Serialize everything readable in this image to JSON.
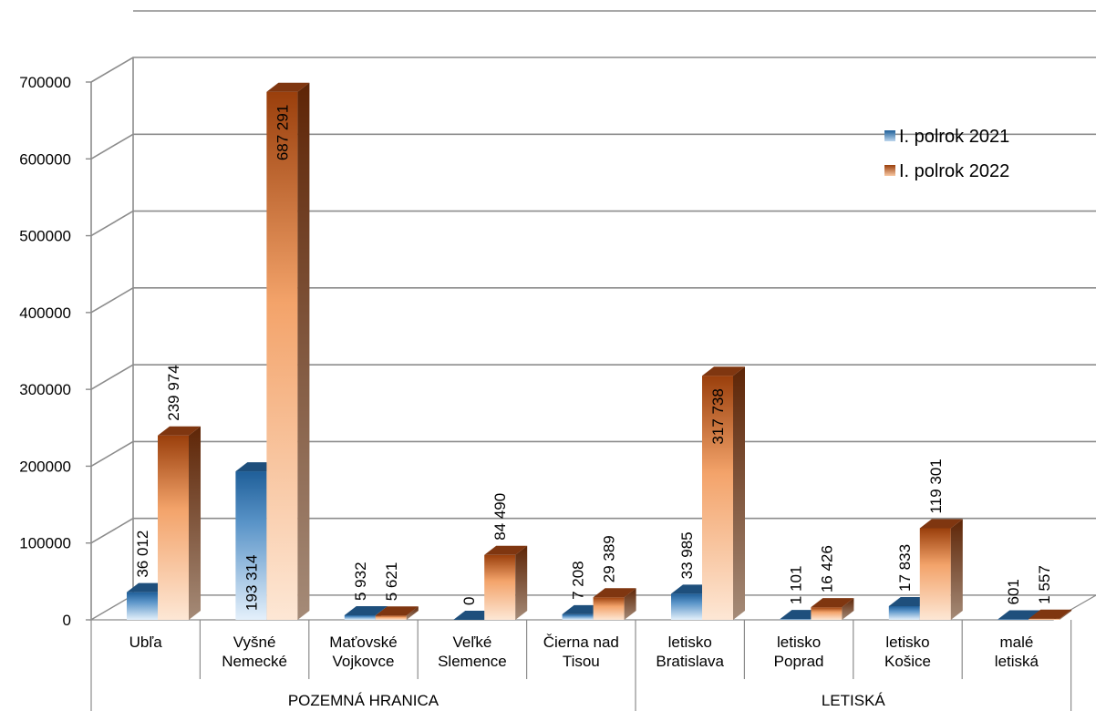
{
  "chart_data": {
    "type": "bar",
    "title": "",
    "xlabel": "",
    "ylabel": "",
    "ylim": [
      0,
      700000
    ],
    "yticks": [
      "0",
      "100000",
      "200000",
      "300000",
      "400000",
      "500000",
      "600000",
      "700000"
    ],
    "grid": true,
    "legend_position": "top-right",
    "categories": [
      "Ubľa",
      "Vyšné Nemecké",
      "Maťovské Vojkovce",
      "Veľké Slemence",
      "Čierna nad Tisou",
      "letisko Bratislava",
      "letisko Poprad",
      "letisko Košice",
      "malé letiská"
    ],
    "category_lines": [
      [
        "Ubľa"
      ],
      [
        "Vyšné",
        "Nemecké"
      ],
      [
        "Maťovské",
        "Vojkovce"
      ],
      [
        "Veľké",
        "Slemence"
      ],
      [
        "Čierna nad",
        "Tisou"
      ],
      [
        "letisko",
        "Bratislava"
      ],
      [
        "letisko",
        "Poprad"
      ],
      [
        "letisko",
        "Košice"
      ],
      [
        "malé",
        "letiská"
      ]
    ],
    "groups": [
      {
        "label": "POZEMNÁ HRANICA",
        "span": [
          0,
          4
        ]
      },
      {
        "label": "LETISKÁ",
        "span": [
          5,
          8
        ]
      }
    ],
    "series": [
      {
        "name": "I. polrok 2021",
        "color": "#2f6fa8",
        "values": [
          36012,
          193314,
          5932,
          0,
          7208,
          33985,
          1101,
          17833,
          601
        ],
        "labels": [
          "36 012",
          "193 314",
          "5 932",
          "0",
          "7 208",
          "33 985",
          "1 101",
          "17 833",
          "601"
        ]
      },
      {
        "name": "I. polrok 2022",
        "color": "#b5561b",
        "values": [
          239974,
          687291,
          5621,
          84490,
          29389,
          317738,
          16426,
          119301,
          1557
        ],
        "labels": [
          "239 974",
          "687 291",
          "5 621",
          "84 490",
          "29 389",
          "317 738",
          "16 426",
          "119 301",
          "1 557"
        ]
      }
    ]
  }
}
